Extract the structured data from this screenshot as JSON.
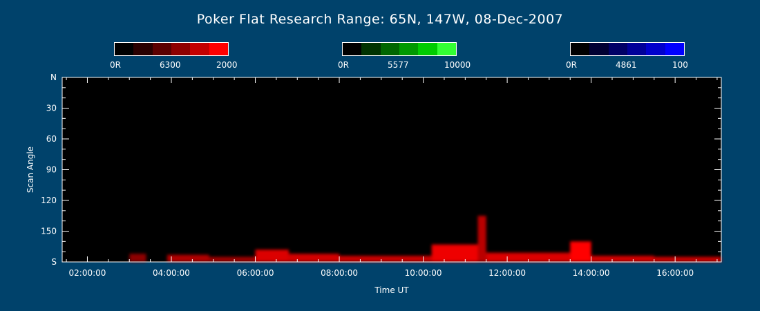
{
  "title": "Poker Flat Research Range: 65N, 147W, 08-Dec-2007",
  "colorbars": [
    {
      "name": "red",
      "labels": [
        "0R",
        "6300",
        "2000"
      ],
      "colors": [
        "#000000",
        "#2a0000",
        "#5c0000",
        "#8e0000",
        "#c40000",
        "#ff0000"
      ]
    },
    {
      "name": "green",
      "labels": [
        "0R",
        "5577",
        "10000"
      ],
      "colors": [
        "#000000",
        "#003300",
        "#006600",
        "#009900",
        "#00cc00",
        "#33ff33"
      ]
    },
    {
      "name": "blue",
      "labels": [
        "0R",
        "4861",
        "100"
      ],
      "colors": [
        "#000000",
        "#000033",
        "#000066",
        "#000099",
        "#0000cc",
        "#0000ff"
      ]
    }
  ],
  "chart_data": {
    "type": "heatmap",
    "xlabel": "Time UT",
    "ylabel": "Scan Angle",
    "x_tick_labels": [
      "02:00:00",
      "04:00:00",
      "06:00:00",
      "08:00:00",
      "10:00:00",
      "12:00:00",
      "14:00:00",
      "16:00:00"
    ],
    "x_tick_hours": [
      2,
      4,
      6,
      8,
      10,
      12,
      14,
      16
    ],
    "xlim_hours": [
      1.4,
      17.1
    ],
    "y_tick_labels": [
      "N",
      "30",
      "60",
      "90",
      "120",
      "150",
      "S"
    ],
    "y_tick_angles": [
      0,
      30,
      60,
      90,
      120,
      150,
      180
    ],
    "ylim": [
      0,
      180
    ],
    "red_emission_6300": [
      {
        "t_start": 3.0,
        "t_end": 3.4,
        "angle_top": 172,
        "intensity": 0.35
      },
      {
        "t_start": 3.9,
        "t_end": 4.9,
        "angle_top": 173,
        "intensity": 0.55
      },
      {
        "t_start": 4.9,
        "t_end": 6.0,
        "angle_top": 175,
        "intensity": 0.45
      },
      {
        "t_start": 6.0,
        "t_end": 6.8,
        "angle_top": 168,
        "intensity": 0.8
      },
      {
        "t_start": 6.8,
        "t_end": 8.0,
        "angle_top": 172,
        "intensity": 0.75
      },
      {
        "t_start": 8.0,
        "t_end": 10.2,
        "angle_top": 174,
        "intensity": 0.7
      },
      {
        "t_start": 10.2,
        "t_end": 11.3,
        "angle_top": 163,
        "intensity": 0.9
      },
      {
        "t_start": 11.3,
        "t_end": 11.5,
        "angle_top": 135,
        "intensity": 0.6
      },
      {
        "t_start": 11.5,
        "t_end": 13.5,
        "angle_top": 171,
        "intensity": 0.8
      },
      {
        "t_start": 13.5,
        "t_end": 14.0,
        "angle_top": 160,
        "intensity": 1.0
      },
      {
        "t_start": 14.0,
        "t_end": 15.5,
        "angle_top": 174,
        "intensity": 0.75
      },
      {
        "t_start": 15.5,
        "t_end": 17.1,
        "angle_top": 175,
        "intensity": 0.7
      }
    ]
  }
}
